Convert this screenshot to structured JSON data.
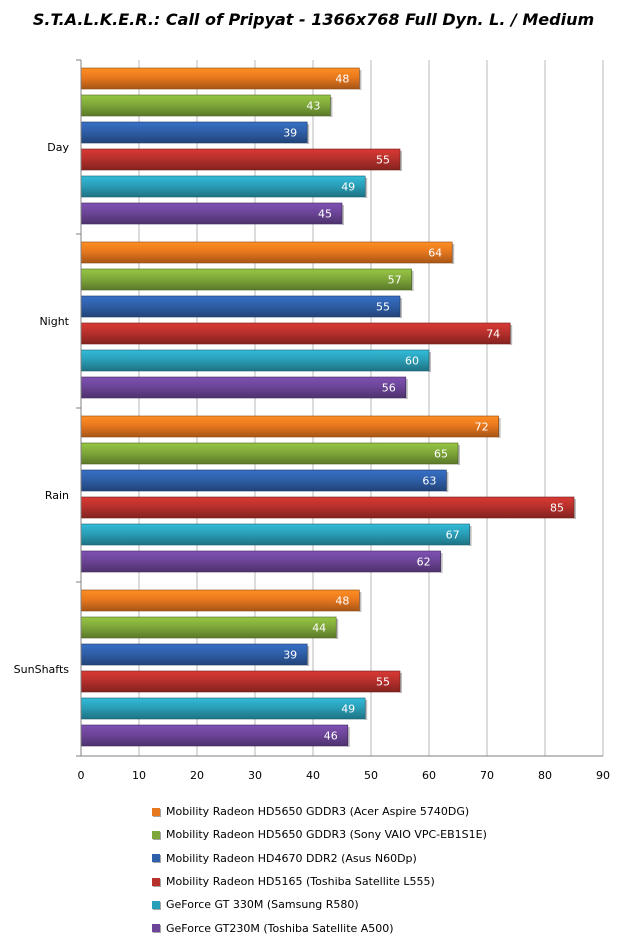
{
  "chart_data": {
    "type": "bar",
    "orientation": "horizontal",
    "title": "S.T.A.L.K.E.R.: Call of Pripyat - 1366x768 Full Dyn. L.  / Medium",
    "categories": [
      "Day",
      "Night",
      "Rain",
      "SunShafts"
    ],
    "series": [
      {
        "name": "Mobility Radeon HD5650 GDDR3 (Acer Aspire 5740DG)",
        "color": "#e8781e",
        "values": [
          48,
          64,
          72,
          48
        ]
      },
      {
        "name": "Mobility Radeon HD5650 GDDR3 (Sony VAIO VPC-EB1S1E)",
        "color": "#7fa83a",
        "values": [
          43,
          57,
          65,
          44
        ]
      },
      {
        "name": "Mobility Radeon HD4670 DDR2 (Asus N60Dp)",
        "color": "#2f5fa8",
        "values": [
          39,
          55,
          63,
          39
        ]
      },
      {
        "name": "Mobility Radeon HD5165 (Toshiba Satellite L555)",
        "color": "#b8302c",
        "values": [
          55,
          74,
          85,
          55
        ]
      },
      {
        "name": "GeForce GT 330M (Samsung R580)",
        "color": "#2a9fb8",
        "values": [
          49,
          60,
          67,
          49
        ]
      },
      {
        "name": "GeForce GT230M (Toshiba Satellite A500)",
        "color": "#6c4598",
        "values": [
          45,
          56,
          62,
          46
        ]
      }
    ],
    "xlim": [
      0,
      90
    ],
    "xticks": [
      0,
      10,
      20,
      30,
      40,
      50,
      60,
      70,
      80,
      90
    ],
    "grid": true,
    "legend_position": "bottom"
  }
}
